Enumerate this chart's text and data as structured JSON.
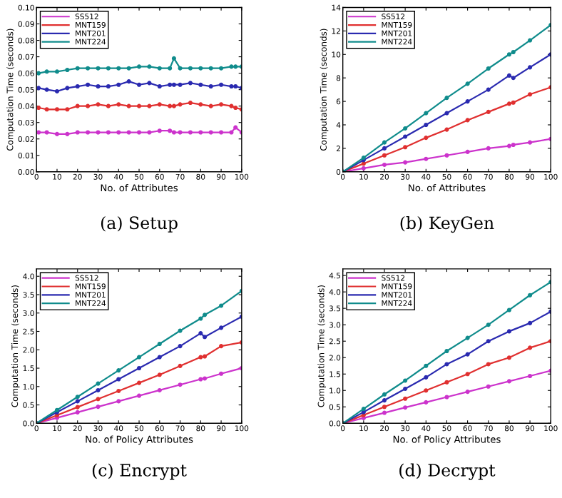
{
  "chart_data": [
    {
      "type": "line",
      "title": "(a) Setup",
      "xlabel": "No. of Attributes",
      "ylabel": "Computation Time (seconds)",
      "legend": "top left",
      "marker": "circle",
      "line_style": "solid",
      "grid": false,
      "x": [
        1,
        5,
        10,
        15,
        20,
        25,
        30,
        35,
        40,
        45,
        50,
        55,
        60,
        65,
        67,
        70,
        75,
        80,
        85,
        90,
        95,
        97,
        100
      ],
      "xlim": [
        0,
        100
      ],
      "xticks": [
        0,
        10,
        20,
        30,
        40,
        50,
        60,
        70,
        80,
        90,
        100
      ],
      "ylim": [
        0,
        0.1
      ],
      "yticks": [
        {
          "value": 0,
          "label": "0.00"
        },
        {
          "value": 0.01,
          "label": "0.01"
        },
        {
          "value": 0.02,
          "label": "0.02"
        },
        {
          "value": 0.03,
          "label": "0.03"
        },
        {
          "value": 0.04,
          "label": "0.04"
        },
        {
          "value": 0.05,
          "label": "0.05"
        },
        {
          "value": 0.06,
          "label": "0.06"
        },
        {
          "value": 0.07,
          "label": "0.07"
        },
        {
          "value": 0.08,
          "label": "0.08"
        },
        {
          "value": 0.09,
          "label": "0.09"
        },
        {
          "value": 0.1,
          "label": "0.10"
        }
      ],
      "series": [
        {
          "name": "SS512",
          "color": "#cc33cc",
          "values": [
            0.024,
            0.024,
            0.023,
            0.023,
            0.024,
            0.024,
            0.024,
            0.024,
            0.024,
            0.024,
            0.024,
            0.024,
            0.025,
            0.025,
            0.024,
            0.024,
            0.024,
            0.024,
            0.024,
            0.024,
            0.024,
            0.027,
            0.024
          ]
        },
        {
          "name": "MNT159",
          "color": "#e03030",
          "values": [
            0.039,
            0.038,
            0.038,
            0.038,
            0.04,
            0.04,
            0.041,
            0.04,
            0.041,
            0.04,
            0.04,
            0.04,
            0.041,
            0.04,
            0.04,
            0.041,
            0.042,
            0.041,
            0.04,
            0.041,
            0.04,
            0.039,
            0.038
          ]
        },
        {
          "name": "MNT201",
          "color": "#2a2ab0",
          "values": [
            0.051,
            0.05,
            0.049,
            0.051,
            0.052,
            0.053,
            0.052,
            0.052,
            0.053,
            0.055,
            0.053,
            0.054,
            0.052,
            0.053,
            0.053,
            0.053,
            0.054,
            0.053,
            0.052,
            0.053,
            0.052,
            0.052,
            0.051
          ]
        },
        {
          "name": "MNT224",
          "color": "#108c8c",
          "values": [
            0.06,
            0.061,
            0.061,
            0.062,
            0.063,
            0.063,
            0.063,
            0.063,
            0.063,
            0.063,
            0.064,
            0.064,
            0.063,
            0.063,
            0.069,
            0.063,
            0.063,
            0.063,
            0.063,
            0.063,
            0.064,
            0.064,
            0.064
          ]
        }
      ]
    },
    {
      "type": "line",
      "title": "(b) KeyGen",
      "xlabel": "No. of Attributes",
      "ylabel": "Computation Time (seconds)",
      "legend": "top left",
      "marker": "circle",
      "line_style": "solid",
      "grid": false,
      "x": [
        0,
        10,
        20,
        30,
        40,
        50,
        60,
        70,
        80,
        82,
        90,
        100
      ],
      "xlim": [
        0,
        100
      ],
      "xticks": [
        0,
        10,
        20,
        30,
        40,
        50,
        60,
        70,
        80,
        90,
        100
      ],
      "ylim": [
        0,
        14
      ],
      "yticks": [
        0,
        2,
        4,
        6,
        8,
        10,
        12,
        14
      ],
      "series": [
        {
          "name": "SS512",
          "color": "#cc33cc",
          "values": [
            0,
            0.3,
            0.6,
            0.8,
            1.1,
            1.4,
            1.7,
            2.0,
            2.2,
            2.3,
            2.5,
            2.8
          ]
        },
        {
          "name": "MNT159",
          "color": "#e03030",
          "values": [
            0,
            0.7,
            1.4,
            2.1,
            2.9,
            3.6,
            4.4,
            5.1,
            5.8,
            5.9,
            6.6,
            7.2
          ]
        },
        {
          "name": "MNT201",
          "color": "#2a2ab0",
          "values": [
            0,
            1.0,
            2.0,
            3.0,
            4.0,
            5.0,
            6.0,
            7.0,
            8.2,
            8.0,
            8.9,
            10.0
          ]
        },
        {
          "name": "MNT224",
          "color": "#108c8c",
          "values": [
            0,
            1.2,
            2.5,
            3.7,
            5.0,
            6.3,
            7.5,
            8.8,
            10.0,
            10.2,
            11.2,
            12.5
          ]
        }
      ]
    },
    {
      "type": "line",
      "title": "(c) Encrypt",
      "xlabel": "No. of Policy Attributes",
      "ylabel": "Computation Time (seconds)",
      "legend": "top left",
      "marker": "circle",
      "line_style": "solid",
      "grid": false,
      "x": [
        0,
        10,
        20,
        30,
        40,
        50,
        60,
        70,
        80,
        82,
        90,
        100
      ],
      "xlim": [
        0,
        100
      ],
      "xticks": [
        0,
        10,
        20,
        30,
        40,
        50,
        60,
        70,
        80,
        90,
        100
      ],
      "ylim": [
        0,
        4.2
      ],
      "yticks": [
        {
          "value": 0,
          "label": "0.0"
        },
        0.5,
        {
          "value": 1,
          "label": "1.0"
        },
        1.5,
        {
          "value": 2,
          "label": "2.0"
        },
        2.5,
        {
          "value": 3,
          "label": "3.0"
        },
        3.5,
        {
          "value": 4,
          "label": "4.0"
        }
      ],
      "series": [
        {
          "name": "SS512",
          "color": "#cc33cc",
          "values": [
            0,
            0.15,
            0.3,
            0.45,
            0.6,
            0.75,
            0.9,
            1.05,
            1.2,
            1.22,
            1.35,
            1.5
          ]
        },
        {
          "name": "MNT159",
          "color": "#e03030",
          "values": [
            0,
            0.22,
            0.44,
            0.66,
            0.88,
            1.1,
            1.32,
            1.56,
            1.8,
            1.82,
            2.1,
            2.2
          ]
        },
        {
          "name": "MNT201",
          "color": "#2a2ab0",
          "values": [
            0,
            0.3,
            0.6,
            0.9,
            1.2,
            1.5,
            1.8,
            2.1,
            2.45,
            2.35,
            2.6,
            2.9
          ]
        },
        {
          "name": "MNT224",
          "color": "#108c8c",
          "values": [
            0,
            0.36,
            0.72,
            1.08,
            1.44,
            1.8,
            2.16,
            2.52,
            2.85,
            2.95,
            3.2,
            3.6
          ]
        }
      ]
    },
    {
      "type": "line",
      "title": "(d) Decrypt",
      "xlabel": "No. of Policy Attributes",
      "ylabel": "Computation Time (seconds)",
      "legend": "top left",
      "marker": "circle",
      "line_style": "solid",
      "grid": false,
      "x": [
        0,
        10,
        20,
        30,
        40,
        50,
        60,
        70,
        80,
        90,
        100
      ],
      "xlim": [
        0,
        100
      ],
      "xticks": [
        0,
        10,
        20,
        30,
        40,
        50,
        60,
        70,
        80,
        90,
        100
      ],
      "ylim": [
        0,
        4.7
      ],
      "yticks": [
        {
          "value": 0,
          "label": "0.0"
        },
        0.5,
        {
          "value": 1,
          "label": "1.0"
        },
        1.5,
        {
          "value": 2,
          "label": "2.0"
        },
        2.5,
        {
          "value": 3,
          "label": "3.0"
        },
        3.5,
        {
          "value": 4,
          "label": "4.0"
        },
        4.5
      ],
      "series": [
        {
          "name": "SS512",
          "color": "#cc33cc",
          "values": [
            0,
            0.16,
            0.32,
            0.48,
            0.64,
            0.8,
            0.96,
            1.12,
            1.28,
            1.44,
            1.6
          ]
        },
        {
          "name": "MNT159",
          "color": "#e03030",
          "values": [
            0,
            0.25,
            0.5,
            0.75,
            1.0,
            1.25,
            1.5,
            1.8,
            2.0,
            2.3,
            2.5
          ]
        },
        {
          "name": "MNT201",
          "color": "#2a2ab0",
          "values": [
            0,
            0.34,
            0.7,
            1.05,
            1.4,
            1.8,
            2.1,
            2.5,
            2.8,
            3.05,
            3.4
          ]
        },
        {
          "name": "MNT224",
          "color": "#108c8c",
          "values": [
            0,
            0.44,
            0.88,
            1.3,
            1.75,
            2.2,
            2.6,
            3.0,
            3.45,
            3.9,
            4.3
          ]
        }
      ]
    }
  ]
}
